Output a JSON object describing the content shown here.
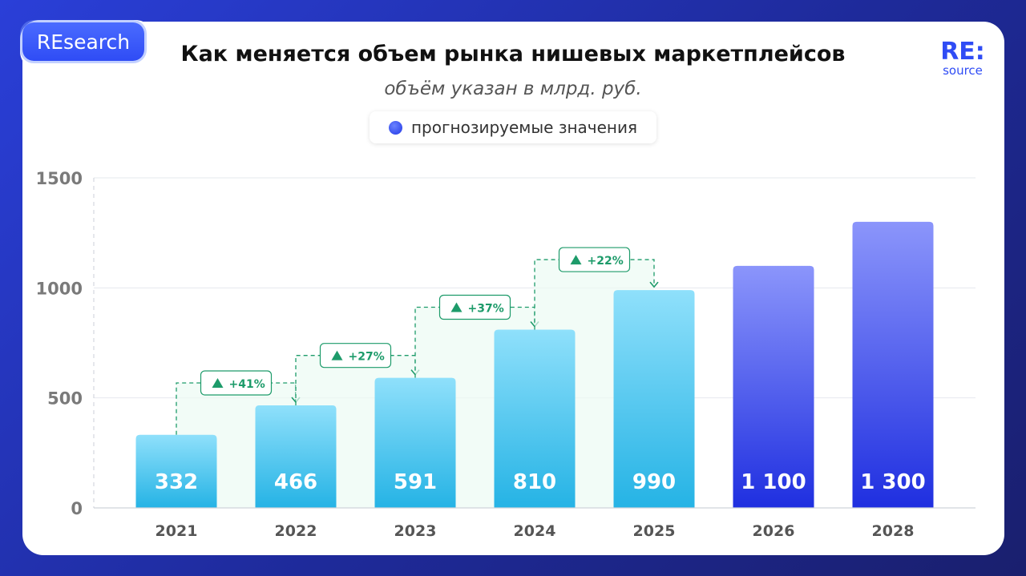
{
  "badge": "REsearch",
  "title": "Как меняется объем рынка нишевых маркетплейсов",
  "subtitle": "объём указан в млрд. руб.",
  "legend_label": "прогнозируемые значения",
  "logo": {
    "main": "RE:",
    "sub": "source"
  },
  "colors": {
    "actual_top": "#8fe0fb",
    "actual_bottom": "#25b3e5",
    "forecast_top": "#8b95fb",
    "forecast_bottom": "#1f2fe0",
    "growth": "#1d9b6a"
  },
  "chart_data": {
    "type": "bar",
    "categories": [
      "2021",
      "2022",
      "2023",
      "2024",
      "2025",
      "2026",
      "2028"
    ],
    "values": [
      332,
      466,
      591,
      810,
      990,
      1100,
      1300
    ],
    "value_labels": [
      "332",
      "466",
      "591",
      "810",
      "990",
      "1 100",
      "1 300"
    ],
    "forecast": [
      false,
      false,
      false,
      false,
      false,
      true,
      true
    ],
    "ylim": [
      0,
      1500
    ],
    "yticks": [
      0,
      500,
      1000,
      1500
    ],
    "grid": true,
    "annotations": [
      {
        "from": "2021",
        "to": "2022",
        "label": "+41%"
      },
      {
        "from": "2022",
        "to": "2023",
        "label": "+27%"
      },
      {
        "from": "2023",
        "to": "2024",
        "label": "+37%"
      },
      {
        "from": "2024",
        "to": "2025",
        "label": "+22%"
      }
    ]
  }
}
